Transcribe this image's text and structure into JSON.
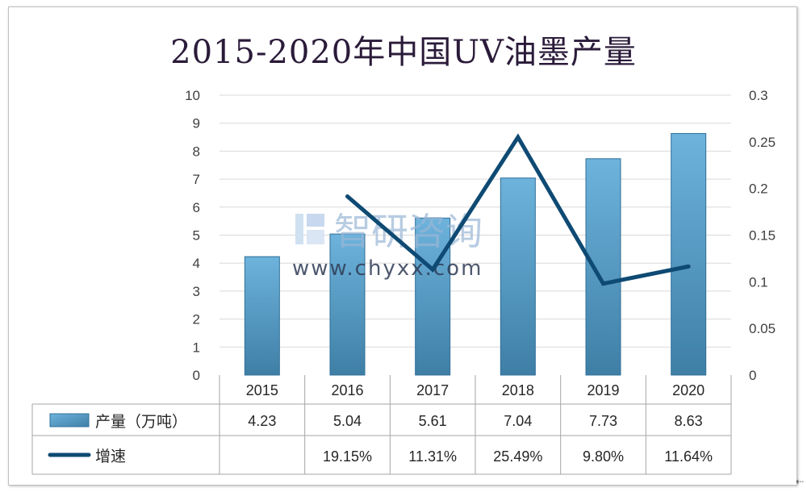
{
  "chart_data": {
    "type": "bar",
    "title": "2015-2020年中国UV油墨产量",
    "categories": [
      "2015",
      "2016",
      "2017",
      "2018",
      "2019",
      "2020"
    ],
    "series": [
      {
        "name": "产量（万吨）",
        "type": "bar",
        "axis": "left",
        "values": [
          4.23,
          5.04,
          5.61,
          7.04,
          7.73,
          8.63
        ],
        "labels": [
          "4.23",
          "5.04",
          "5.61",
          "7.04",
          "7.73",
          "8.63"
        ],
        "color": "#5fa5cf"
      },
      {
        "name": "增速",
        "type": "line",
        "axis": "right",
        "values": [
          null,
          0.1915,
          0.1131,
          0.2549,
          0.098,
          0.1164
        ],
        "labels": [
          "",
          "19.15%",
          "11.31%",
          "25.49%",
          "9.80%",
          "11.64%"
        ],
        "color": "#0e4a73"
      }
    ],
    "y_left": {
      "min": 0,
      "max": 10,
      "ticks": [
        "0",
        "1",
        "2",
        "3",
        "4",
        "5",
        "6",
        "7",
        "8",
        "9",
        "10"
      ]
    },
    "y_right": {
      "min": 0,
      "max": 0.3,
      "ticks": [
        "0",
        "0.05",
        "0.1",
        "0.15",
        "0.2",
        "0.25",
        "0.3"
      ]
    },
    "grid": true,
    "legend": "data-table"
  },
  "watermark": {
    "brand": "智研咨询",
    "url": "www.chyxx.com"
  },
  "corner_mark": "⇠"
}
